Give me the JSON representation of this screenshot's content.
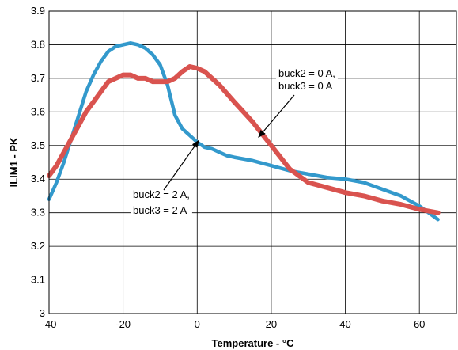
{
  "chart_data": {
    "type": "line",
    "title": "",
    "xlabel": "Temperature - °C",
    "ylabel": "ILIM1 - PK",
    "xlim": [
      -40,
      70
    ],
    "ylim": [
      3.0,
      3.9
    ],
    "x_ticks": [
      "-40",
      "-20",
      "0",
      "20",
      "40",
      "60"
    ],
    "y_ticks": [
      "3",
      "3.1",
      "3.2",
      "3.3",
      "3.4",
      "3.5",
      "3.6",
      "3.7",
      "3.8",
      "3.9"
    ],
    "grid": true,
    "series": [
      {
        "color": "#3399cc",
        "x": [
          -40,
          -38,
          -36,
          -34,
          -32,
          -30,
          -28,
          -26,
          -24,
          -22,
          -20,
          -18,
          -16,
          -14,
          -12,
          -10,
          -8,
          -6,
          -4,
          -2,
          0,
          2,
          4,
          6,
          8,
          10,
          15,
          20,
          25,
          30,
          35,
          40,
          45,
          50,
          55,
          60,
          65
        ],
        "values": [
          3.34,
          3.39,
          3.45,
          3.52,
          3.59,
          3.66,
          3.71,
          3.75,
          3.78,
          3.795,
          3.8,
          3.805,
          3.8,
          3.79,
          3.77,
          3.74,
          3.68,
          3.59,
          3.55,
          3.53,
          3.51,
          3.495,
          3.49,
          3.48,
          3.47,
          3.465,
          3.455,
          3.44,
          3.425,
          3.415,
          3.405,
          3.4,
          3.39,
          3.37,
          3.35,
          3.32,
          3.28
        ]
      },
      {
        "color": "#d9534f",
        "x": [
          -40,
          -38,
          -36,
          -34,
          -32,
          -30,
          -28,
          -26,
          -24,
          -22,
          -20,
          -18,
          -16,
          -14,
          -12,
          -10,
          -8,
          -6,
          -4,
          -2,
          0,
          2,
          4,
          6,
          8,
          10,
          15,
          20,
          25,
          30,
          35,
          40,
          45,
          50,
          55,
          60,
          65
        ],
        "values": [
          3.41,
          3.44,
          3.48,
          3.52,
          3.56,
          3.6,
          3.63,
          3.66,
          3.69,
          3.7,
          3.71,
          3.71,
          3.7,
          3.7,
          3.69,
          3.69,
          3.69,
          3.7,
          3.72,
          3.735,
          3.73,
          3.72,
          3.7,
          3.68,
          3.655,
          3.63,
          3.57,
          3.5,
          3.43,
          3.39,
          3.375,
          3.36,
          3.35,
          3.335,
          3.325,
          3.31,
          3.3
        ]
      }
    ],
    "annotations": [
      {
        "lines": [
          "buck2 = 0 A,",
          "buck3 = 0 A"
        ],
        "target": [
          17,
          3.52
        ]
      },
      {
        "lines": [
          "buck2 = 2 A,",
          "buck3 = 2 A"
        ],
        "target": [
          0,
          3.52
        ]
      }
    ]
  }
}
